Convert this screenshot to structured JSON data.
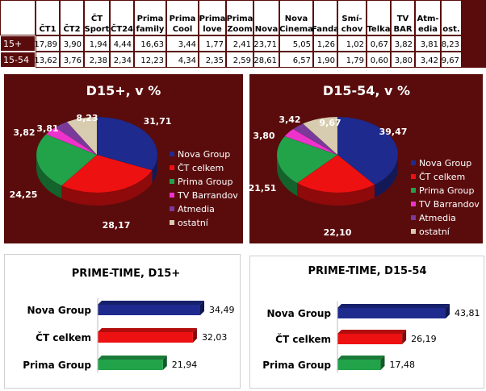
{
  "table": {
    "columns": [
      "",
      "ČT1",
      "ČT2",
      "ČT Sport",
      "ČT24",
      "Prima family",
      "Prima Cool",
      "Prima love",
      "Prima Zoom",
      "Nova",
      "Nova Cinema",
      "Fanda",
      "Smí- chov",
      "Telka",
      "TV BAR",
      "Atm- edia",
      "ost."
    ],
    "header_lines": [
      [
        ""
      ],
      [
        "ČT1"
      ],
      [
        "ČT2"
      ],
      [
        "ČT",
        "Sport"
      ],
      [
        "ČT24"
      ],
      [
        "Prima",
        "family"
      ],
      [
        "Prima",
        "Cool"
      ],
      [
        "Prima",
        "love"
      ],
      [
        "Prima",
        "Zoom"
      ],
      [
        "Nova"
      ],
      [
        "Nova",
        "Cinema"
      ],
      [
        "Fanda"
      ],
      [
        "Smí-",
        "chov"
      ],
      [
        "Telka"
      ],
      [
        "TV",
        "BAR"
      ],
      [
        "Atm-",
        "edia"
      ],
      [
        "ost."
      ]
    ],
    "rows": [
      {
        "label": "15+",
        "values": [
          "17,89",
          "3,90",
          "1,94",
          "4,44",
          "16,63",
          "3,44",
          "1,77",
          "2,41",
          "23,71",
          "5,05",
          "1,26",
          "1,02",
          "0,67",
          "3,82",
          "3,81",
          "8,23"
        ]
      },
      {
        "label": "15-54",
        "values": [
          "13,62",
          "3,76",
          "2,38",
          "2,34",
          "12,23",
          "4,34",
          "2,35",
          "2,59",
          "28,61",
          "6,57",
          "1,90",
          "1,79",
          "0,60",
          "3,80",
          "3,42",
          "9,67"
        ]
      }
    ]
  },
  "colors": {
    "panel_bg": "#5a0c0c",
    "nova": "#1f2a8f",
    "ct": "#ee1111",
    "prima": "#22a34a",
    "tvb": "#ee33cc",
    "atmedia": "#7a3a9a",
    "ostatni": "#d8ccb0"
  },
  "chart_data": [
    {
      "type": "pie",
      "title": "D15+, v %",
      "categories": [
        "Nova Group",
        "ČT celkem",
        "Prima Group",
        "TV Barrandov",
        "Atmedia",
        "ostatní"
      ],
      "values": [
        31.71,
        28.17,
        24.25,
        3.82,
        3.81,
        8.23
      ],
      "labels": [
        "31,71",
        "28,17",
        "24,25",
        "3,82",
        "3,81",
        "8,23"
      ],
      "legend": "right"
    },
    {
      "type": "pie",
      "title": "D15-54, v %",
      "categories": [
        "Nova Group",
        "ČT celkem",
        "Prima Group",
        "TV Barrandov",
        "Atmedia",
        "ostatní"
      ],
      "values": [
        39.47,
        22.1,
        21.51,
        3.8,
        3.42,
        9.67
      ],
      "labels": [
        "39,47",
        "22,10",
        "21,51",
        "3,80",
        "3,42",
        "9,67"
      ],
      "legend": "right"
    },
    {
      "type": "bar",
      "orientation": "horizontal",
      "title": "PRIME-TIME, D15+",
      "categories": [
        "Nova Group",
        "ČT celkem",
        "Prima Group"
      ],
      "values": [
        34.49,
        32.03,
        21.94
      ],
      "labels": [
        "34,49",
        "32,03",
        "21,94"
      ]
    },
    {
      "type": "bar",
      "orientation": "horizontal",
      "title": "PRIME-TIME, D15-54",
      "categories": [
        "Nova Group",
        "ČT celkem",
        "Prima Group"
      ],
      "values": [
        43.81,
        26.19,
        17.48
      ],
      "labels": [
        "43,81",
        "26,19",
        "17,48"
      ]
    }
  ]
}
